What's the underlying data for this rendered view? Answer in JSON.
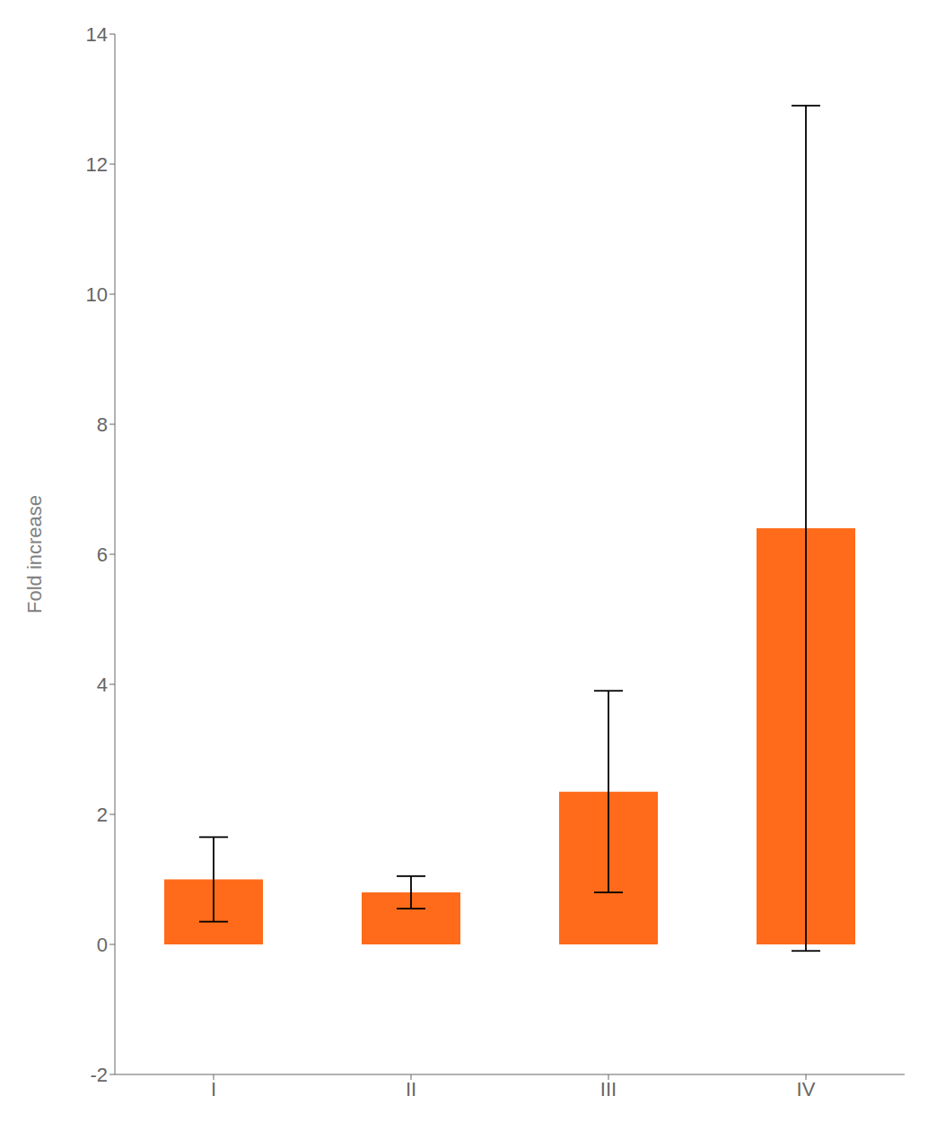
{
  "chart_data": {
    "type": "bar",
    "categories": [
      "I",
      "II",
      "III",
      "IV"
    ],
    "values": [
      1.0,
      0.8,
      2.35,
      6.4
    ],
    "errors": [
      0.65,
      0.25,
      1.55,
      6.5
    ],
    "color": "#FF6B1A",
    "ylabel": "Fold increase",
    "ylim": [
      -2,
      14
    ],
    "yticks": [
      -2,
      0,
      2,
      4,
      6,
      8,
      10,
      12,
      14
    ],
    "grid": false
  }
}
